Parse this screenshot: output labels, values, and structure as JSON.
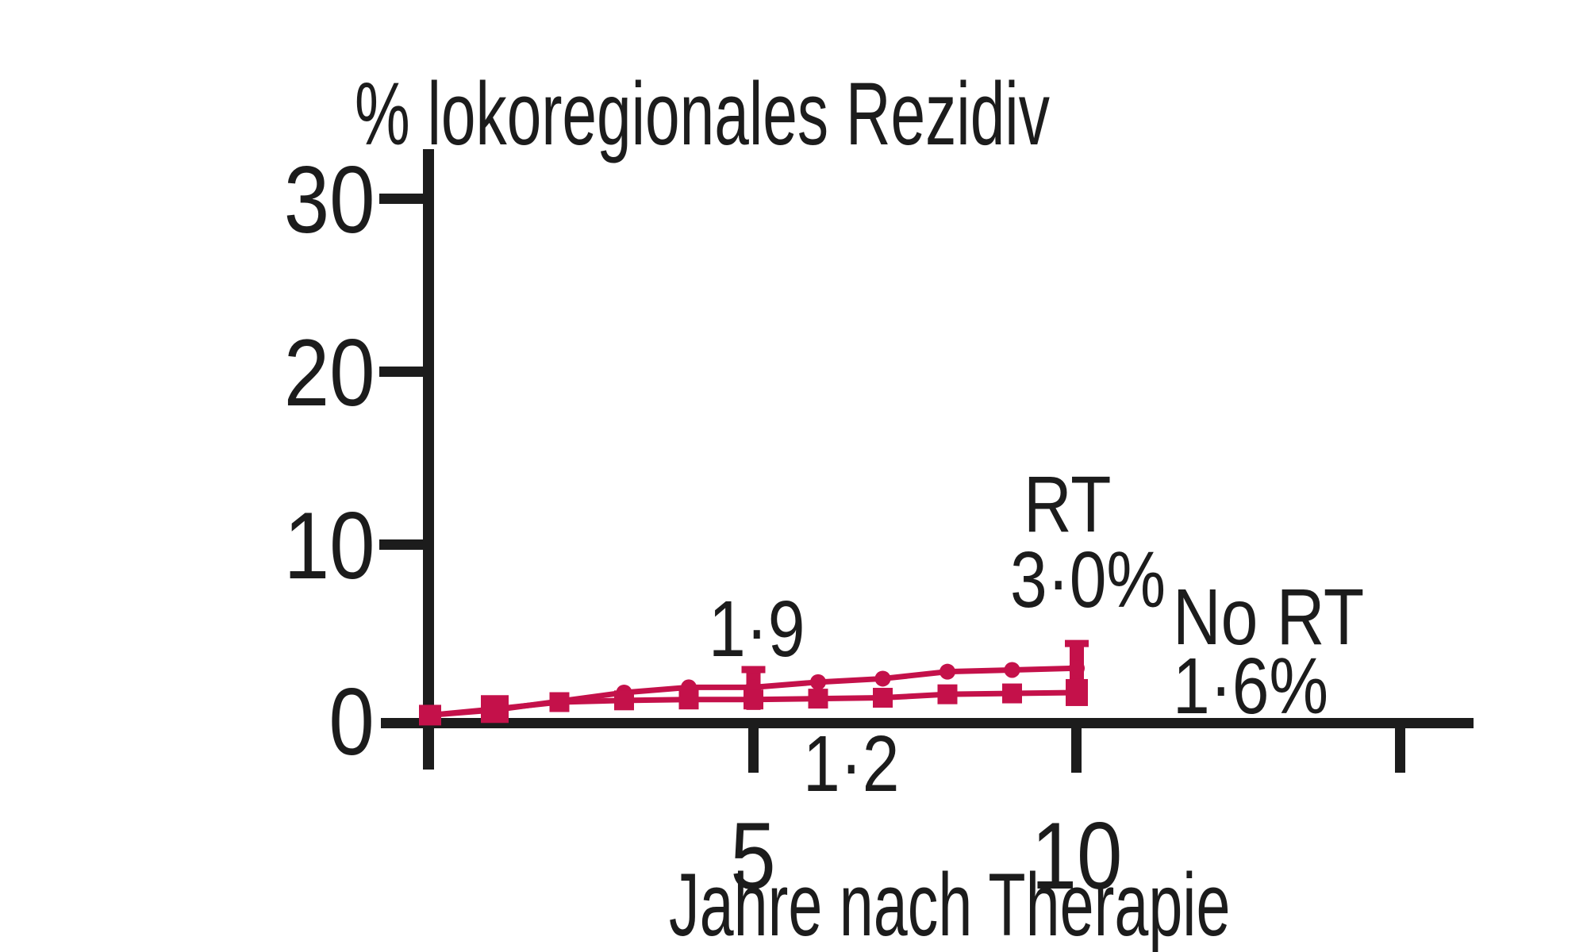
{
  "title": "% lokoregionales Rezidiv",
  "chart_data": {
    "type": "line",
    "title": "% lokoregionales Rezidiv",
    "xlabel": "Jahre nach Therapie",
    "ylabel": "",
    "x_unit": "Jahre",
    "y_unit": "%",
    "xlim": [
      0,
      16.2
    ],
    "ylim": [
      0,
      33
    ],
    "grid": false,
    "legend_position": "annotated-at-line-ends",
    "background": "#ffffff",
    "axis_color": "#1c1c1c",
    "line_color": "#C4114A",
    "x": [
      0,
      1,
      2,
      3,
      4,
      5,
      6,
      7,
      8,
      9,
      10
    ],
    "series": [
      {
        "name": "RT",
        "marker": "circle",
        "color": "#C4114A",
        "values": [
          0.3,
          0.6,
          1.1,
          1.6,
          1.9,
          1.9,
          2.2,
          2.4,
          2.8,
          2.9,
          3.0
        ],
        "value_at_5y_label": "1·9",
        "value_at_10y_label": "3·0%"
      },
      {
        "name": "No RT",
        "marker": "square",
        "color": "#C4114A",
        "values": [
          0.3,
          0.65,
          1.05,
          1.15,
          1.2,
          1.2,
          1.25,
          1.3,
          1.5,
          1.55,
          1.6
        ],
        "value_at_5y_label": "1·2",
        "value_at_10y_label": "1·6%"
      }
    ],
    "error_bars": [
      {
        "x": 5,
        "top": 2.9,
        "bottom": 0.6
      },
      {
        "x": 10,
        "top": 4.4,
        "bottom": 0.85
      }
    ],
    "x_ticks": [
      {
        "value": 5,
        "label": "5"
      },
      {
        "value": 10,
        "label": "10"
      },
      {
        "value": 15,
        "label": ""
      }
    ],
    "y_ticks": [
      {
        "value": 30,
        "label": "30"
      },
      {
        "value": 20,
        "label": "20"
      },
      {
        "value": 10,
        "label": "10"
      },
      {
        "value": 0,
        "label": "0"
      }
    ],
    "annotations": [
      {
        "text": "1·9",
        "meaning": "RT line value at 5 years"
      },
      {
        "text": "1·2",
        "meaning": "No RT line value at ~6 years"
      },
      {
        "text": "RT",
        "meaning": "label of upper line endpoint"
      },
      {
        "text": "3·0%",
        "meaning": "RT value at 10 years"
      },
      {
        "text": "No RT",
        "meaning": "label of lower line endpoint"
      },
      {
        "text": "1·6%",
        "meaning": "No RT value at 10 years"
      }
    ]
  }
}
